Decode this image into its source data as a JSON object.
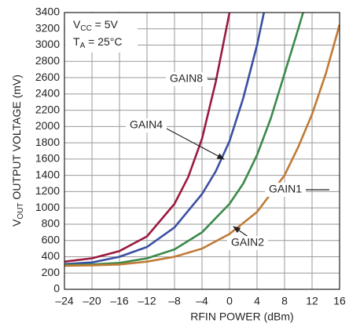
{
  "chart_data": {
    "type": "line",
    "xlabel": "RFIN POWER (dBm)",
    "ylabel": {
      "main": "V",
      "sub": "OUT",
      "rest": " OUTPUT VOLTAGE (mV)"
    },
    "annotations": {
      "vcc": {
        "main": "V",
        "sub": "CC",
        "rest": " = 5V"
      },
      "ta": {
        "main": "T",
        "sub": "A",
        "rest": " = 25°C"
      }
    },
    "xlim": [
      -24,
      16
    ],
    "xticks": [
      {
        "value": -24,
        "label": "–24"
      },
      {
        "value": -20,
        "label": "–20"
      },
      {
        "value": -16,
        "label": "–16"
      },
      {
        "value": -12,
        "label": "–12"
      },
      {
        "value": -8,
        "label": "–8"
      },
      {
        "value": -4,
        "label": "–4"
      },
      0,
      4,
      8,
      12,
      16
    ],
    "ylim": [
      0,
      3400
    ],
    "yticks": [
      0,
      200,
      400,
      600,
      800,
      1000,
      1200,
      1400,
      1600,
      1800,
      2000,
      2200,
      2400,
      2600,
      2800,
      3000,
      3200,
      3400
    ],
    "grid": true,
    "series": [
      {
        "name": "GAIN8",
        "color": "#9b1a3e",
        "x": [
          -24,
          -20,
          -16,
          -12,
          -8,
          -6,
          -4,
          -2,
          0
        ],
        "values": [
          340,
          380,
          470,
          650,
          1050,
          1380,
          1850,
          2550,
          3400
        ]
      },
      {
        "name": "GAIN4",
        "color": "#3a4fa3",
        "x": [
          -24,
          -20,
          -16,
          -12,
          -8,
          -4,
          -2,
          0,
          2,
          4,
          5
        ],
        "values": [
          310,
          330,
          400,
          520,
          760,
          1170,
          1450,
          1820,
          2350,
          3000,
          3400
        ]
      },
      {
        "name": "GAIN2",
        "color": "#3a8a4a",
        "x": [
          -24,
          -20,
          -16,
          -12,
          -8,
          -4,
          0,
          2,
          4,
          6,
          8,
          10,
          10.7
        ],
        "values": [
          300,
          305,
          325,
          380,
          490,
          700,
          1050,
          1300,
          1650,
          2100,
          2650,
          3200,
          3400
        ]
      },
      {
        "name": "GAIN1",
        "color": "#c07a35",
        "x": [
          -24,
          -20,
          -16,
          -12,
          -8,
          -4,
          0,
          4,
          8,
          10,
          12,
          14,
          16
        ],
        "values": [
          290,
          295,
          305,
          340,
          400,
          500,
          680,
          950,
          1400,
          1750,
          2150,
          2650,
          3250
        ]
      }
    ]
  }
}
